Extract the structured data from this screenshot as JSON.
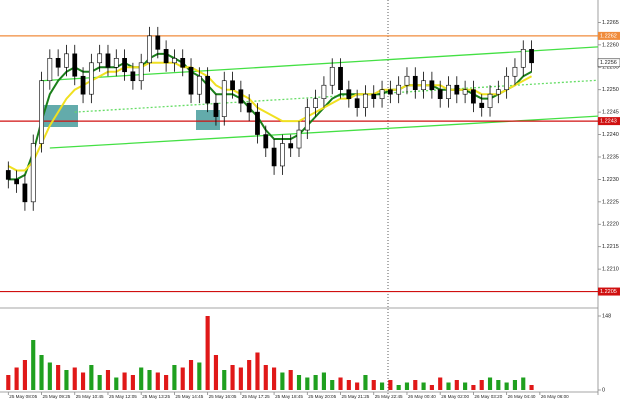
{
  "chart_data": {
    "type": "candlestick",
    "open": [
      1.2232,
      1.223,
      1.2229,
      1.2225,
      1.2238,
      1.2252,
      1.2257,
      1.2255,
      1.2258,
      1.2253,
      1.2249,
      1.2256,
      1.2258,
      1.2255,
      1.2257,
      1.2254,
      1.2252,
      1.2256,
      1.2262,
      1.2259,
      1.2256,
      1.2257,
      1.2255,
      1.2249,
      1.2253,
      1.2247,
      1.2244,
      1.2252,
      1.225,
      1.2247,
      1.2245,
      1.224,
      1.2237,
      1.2233,
      1.2238,
      1.2237,
      1.2241,
      1.2246,
      1.2248,
      1.2251,
      1.2255,
      1.225,
      1.2248,
      1.2246,
      1.2249,
      1.2248,
      1.225,
      1.2249,
      1.2251,
      1.2253,
      1.225,
      1.2252,
      1.225,
      1.2248,
      1.2251,
      1.2249,
      1.225,
      1.2247,
      1.2246,
      1.2249,
      1.225,
      1.2253,
      1.2255,
      1.2259
    ],
    "high": [
      1.2234,
      1.2232,
      1.2231,
      1.224,
      1.2254,
      1.2259,
      1.2259,
      1.226,
      1.226,
      1.2255,
      1.2258,
      1.226,
      1.226,
      1.2259,
      1.2259,
      1.2256,
      1.2258,
      1.2264,
      1.2264,
      1.2261,
      1.2259,
      1.2259,
      1.2257,
      1.2255,
      1.2255,
      1.2249,
      1.2254,
      1.2254,
      1.2252,
      1.2249,
      1.2247,
      1.2242,
      1.2239,
      1.224,
      1.224,
      1.2243,
      1.2248,
      1.225,
      1.2253,
      1.2257,
      1.2257,
      1.2252,
      1.225,
      1.2251,
      1.2251,
      1.2252,
      1.2252,
      1.2253,
      1.2255,
      1.2255,
      1.2254,
      1.2254,
      1.2252,
      1.2253,
      1.2253,
      1.2252,
      1.2252,
      1.2249,
      1.2251,
      1.2252,
      1.2255,
      1.2257,
      1.2261,
      1.2261
    ],
    "low": [
      1.2228,
      1.2227,
      1.2223,
      1.2223,
      1.2236,
      1.225,
      1.2253,
      1.2253,
      1.2251,
      1.2247,
      1.2247,
      1.2254,
      1.2253,
      1.2253,
      1.2252,
      1.225,
      1.225,
      1.2254,
      1.2257,
      1.2254,
      1.2254,
      1.2253,
      1.2247,
      1.2247,
      1.2245,
      1.2242,
      1.2242,
      1.2248,
      1.2245,
      1.2243,
      1.2238,
      1.2235,
      1.2231,
      1.2231,
      1.2235,
      1.2235,
      1.2239,
      1.2244,
      1.2246,
      1.2249,
      1.2248,
      1.2246,
      1.2244,
      1.2244,
      1.2246,
      1.2246,
      1.2247,
      1.2247,
      1.2249,
      1.2248,
      1.2248,
      1.2248,
      1.2246,
      1.2246,
      1.2247,
      1.2247,
      1.2245,
      1.2244,
      1.2244,
      1.2247,
      1.2248,
      1.2251,
      1.2253,
      1.2254
    ],
    "close": [
      1.223,
      1.2229,
      1.2225,
      1.2238,
      1.2252,
      1.2257,
      1.2255,
      1.2258,
      1.2253,
      1.2249,
      1.2256,
      1.2258,
      1.2255,
      1.2257,
      1.2254,
      1.2252,
      1.2256,
      1.2262,
      1.2259,
      1.2256,
      1.2257,
      1.2255,
      1.2249,
      1.2253,
      1.2247,
      1.2244,
      1.2252,
      1.225,
      1.2247,
      1.2245,
      1.224,
      1.2237,
      1.2233,
      1.2238,
      1.2237,
      1.2241,
      1.2246,
      1.2248,
      1.2251,
      1.2255,
      1.225,
      1.2248,
      1.2246,
      1.2249,
      1.2248,
      1.225,
      1.2249,
      1.2251,
      1.2253,
      1.225,
      1.2252,
      1.225,
      1.2248,
      1.2251,
      1.2249,
      1.225,
      1.2247,
      1.2246,
      1.2249,
      1.225,
      1.2253,
      1.2255,
      1.2259,
      1.2256
    ],
    "volume": [
      30,
      45,
      60,
      100,
      70,
      55,
      50,
      40,
      45,
      35,
      50,
      30,
      40,
      25,
      35,
      30,
      45,
      40,
      35,
      30,
      50,
      45,
      60,
      55,
      148,
      70,
      40,
      50,
      45,
      60,
      75,
      50,
      45,
      35,
      40,
      30,
      25,
      30,
      35,
      20,
      25,
      20,
      15,
      30,
      20,
      15,
      20,
      10,
      15,
      20,
      15,
      10,
      25,
      15,
      20,
      15,
      10,
      20,
      25,
      20,
      15,
      20,
      25,
      10
    ],
    "up_color": "#000000",
    "down_color": "#000000",
    "volume_up_color": "#1fa01f",
    "volume_down_color": "#e01818",
    "moving_averages": [
      {
        "color": "#1a7f1a",
        "values": [
          1.223,
          1.223,
          1.2231,
          1.2236,
          1.2243,
          1.2249,
          1.2252,
          1.2254,
          1.2255,
          1.2254,
          1.2254,
          1.2255,
          1.2255,
          1.2255,
          1.2256,
          1.2255,
          1.2255,
          1.2257,
          1.2258,
          1.2258,
          1.2257,
          1.2256,
          1.2254,
          1.2253,
          1.2251,
          1.2249,
          1.2249,
          1.2249,
          1.2248,
          1.2246,
          1.2244,
          1.2241,
          1.2239,
          1.2239,
          1.2239,
          1.224,
          1.2242,
          1.2244,
          1.2246,
          1.2248,
          1.2249,
          1.2249,
          1.2249,
          1.2249,
          1.2249,
          1.2249,
          1.225,
          1.225,
          1.2251,
          1.2251,
          1.2251,
          1.2251,
          1.225,
          1.225,
          1.225,
          1.225,
          1.2249,
          1.2248,
          1.2248,
          1.2249,
          1.225,
          1.2251,
          1.2253,
          1.2254
        ]
      },
      {
        "color": "#f0e020",
        "values": [
          1.2233,
          1.2232,
          1.2232,
          1.2234,
          1.2238,
          1.2242,
          1.2245,
          1.2248,
          1.225,
          1.2251,
          1.2252,
          1.2253,
          1.2254,
          1.2254,
          1.2255,
          1.2255,
          1.2255,
          1.2256,
          1.2256,
          1.2256,
          1.2256,
          1.2255,
          1.2255,
          1.2254,
          1.2253,
          1.2251,
          1.225,
          1.225,
          1.2249,
          1.2248,
          1.2246,
          1.2245,
          1.2244,
          1.2243,
          1.2243,
          1.2243,
          1.2244,
          1.2245,
          1.2246,
          1.2247,
          1.2248,
          1.2248,
          1.2249,
          1.2249,
          1.2249,
          1.225,
          1.225,
          1.225,
          1.2251,
          1.2251,
          1.2251,
          1.2251,
          1.2251,
          1.225,
          1.225,
          1.225,
          1.225,
          1.2249,
          1.2249,
          1.2249,
          1.225,
          1.2251,
          1.2252,
          1.2253
        ]
      }
    ],
    "trendlines": [
      {
        "color": "#44e044",
        "dashed": false,
        "points": [
          [
            4,
            1.2252
          ],
          [
            75,
            1.226
          ]
        ]
      },
      {
        "color": "#44e044",
        "dashed": false,
        "points": [
          [
            5,
            1.2237
          ],
          [
            70,
            1.2244
          ]
        ]
      },
      {
        "color": "#66dd66",
        "dashed": true,
        "points": [
          [
            8,
            1.2245
          ],
          [
            70,
            1.2252
          ]
        ]
      }
    ],
    "levels": [
      {
        "value": 1.2262,
        "color": "#f08c3c"
      },
      {
        "value": 1.2243,
        "color": "#d01010"
      },
      {
        "value": 1.2205,
        "color": "#d01010"
      }
    ],
    "current_price": 1.2256,
    "xlim": [
      -1,
      71
    ],
    "ylim": [
      1.2202,
      1.227
    ],
    "vlim": [
      0,
      148
    ],
    "vticks": [
      0,
      148
    ],
    "yticks": [
      1.2265,
      {
        "value": 1.226,
        "label": "1.2260"
      },
      1.2255,
      {
        "value": 1.225,
        "label": "1.2250"
      },
      1.2245,
      {
        "value": 1.224,
        "label": "1.2240"
      },
      1.2235,
      {
        "value": 1.223,
        "label": "1.2230"
      },
      1.2225,
      {
        "value": 1.222,
        "label": "1.2220"
      },
      1.2215,
      {
        "value": 1.221,
        "label": "1.2210"
      }
    ],
    "xticks": [
      {
        "value": 0,
        "label": "25 May 08:05"
      },
      {
        "value": 4,
        "label": "25 May 09:25"
      },
      {
        "value": 8,
        "label": "25 May 10:45"
      },
      {
        "value": 12,
        "label": "25 May 12:05"
      },
      {
        "value": 16,
        "label": "25 May 13:25"
      },
      {
        "value": 20,
        "label": "25 May 14:45"
      },
      {
        "value": 24,
        "label": "25 May 16:05"
      },
      {
        "value": 28,
        "label": "25 May 17:25"
      },
      {
        "value": 32,
        "label": "25 May 18:45"
      },
      {
        "value": 36,
        "label": "25 May 20:05"
      },
      {
        "value": 40,
        "label": "25 May 21:25"
      },
      {
        "value": 44,
        "label": "25 May 22:45"
      },
      {
        "value": 48,
        "label": "26 May 00:40"
      },
      {
        "value": 52,
        "label": "26 May 02:00"
      },
      {
        "value": 56,
        "label": "26 May 03:20"
      },
      {
        "value": 60,
        "label": "26 May 04:40"
      },
      {
        "value": 64,
        "label": "26 May 06:00"
      }
    ]
  }
}
